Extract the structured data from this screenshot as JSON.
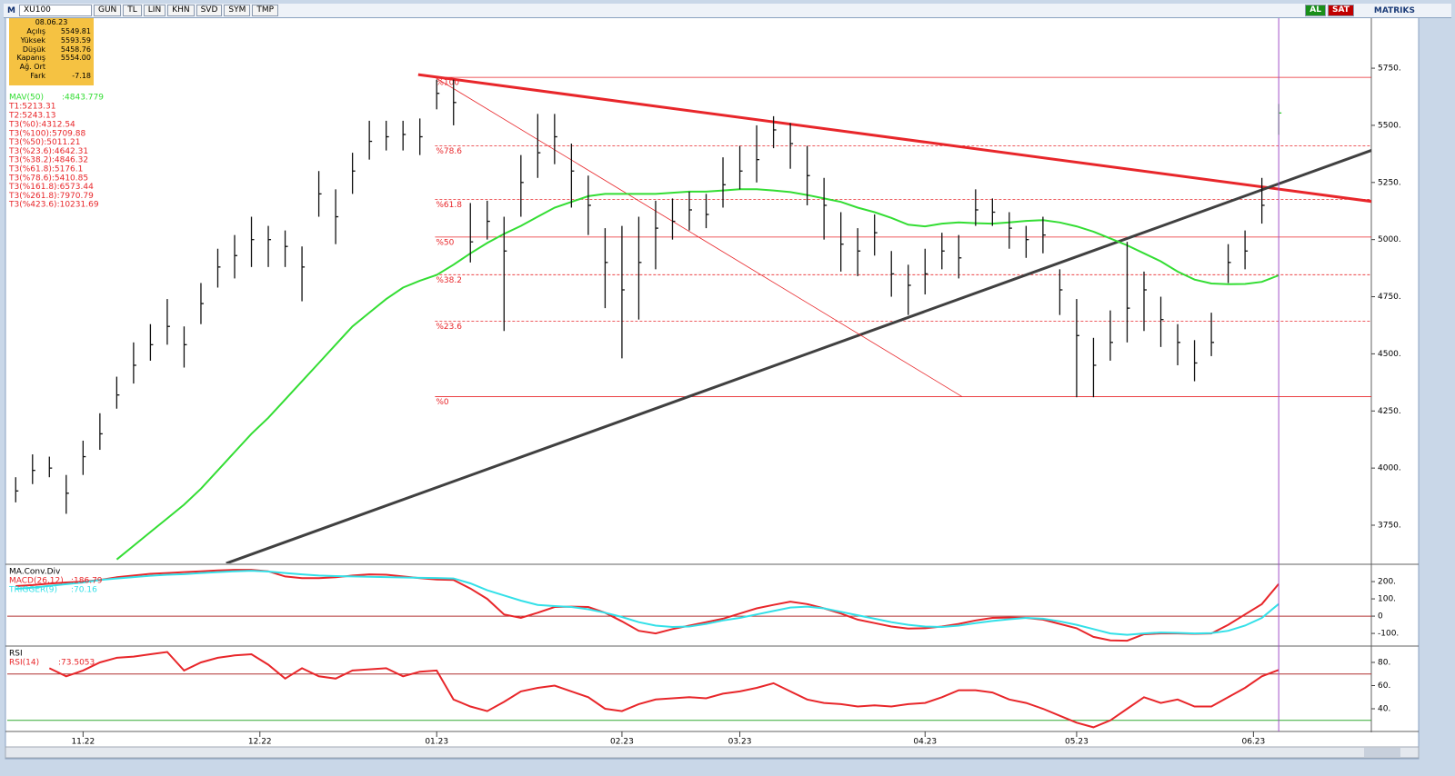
{
  "toolbar": {
    "logo": "M",
    "symbol": "XU100",
    "buttons": [
      "GUN",
      "TL",
      "LIN",
      "KHN",
      "SVD",
      "SYM",
      "TMP"
    ],
    "buy": "AL",
    "sell": "SAT",
    "brand": "MATRIKS"
  },
  "info_box": {
    "date": "08.06.23",
    "rows": [
      [
        "Açılış",
        "5549.81"
      ],
      [
        "Yüksek",
        "5593.59"
      ],
      [
        "Düşük",
        "5458.76"
      ],
      [
        "Kapanış",
        "5554.00"
      ],
      [
        "Ağ. Ort"
      ],
      [
        "Fark",
        "-7.18"
      ]
    ]
  },
  "chart_data": [
    {
      "type": "ohlc",
      "color": "#111111",
      "last_color": "#33cc33",
      "x": [
        0,
        2,
        4,
        6,
        8,
        10,
        12,
        14,
        16,
        18,
        20,
        22,
        24,
        26,
        28,
        30,
        32,
        34,
        36,
        38,
        40,
        42,
        44,
        46,
        48,
        50,
        52,
        54,
        56,
        58,
        60,
        62,
        64,
        66,
        68,
        70,
        72,
        74,
        76,
        78,
        80,
        82,
        84,
        86,
        88,
        90,
        92,
        94,
        96,
        98,
        100,
        102,
        104,
        106,
        108,
        110,
        112,
        114,
        116,
        118,
        120,
        122,
        124,
        126,
        128,
        130,
        132,
        134,
        136,
        138,
        140,
        142,
        144,
        146,
        148,
        150
      ],
      "close": [
        3900,
        3990,
        4000,
        3890,
        4050,
        4150,
        4320,
        4450,
        4540,
        4620,
        4540,
        4720,
        4880,
        4930,
        5000,
        5000,
        4970,
        4880,
        5200,
        5100,
        5300,
        5430,
        5450,
        5460,
        5450,
        5640,
        5600,
        4990,
        5080,
        4950,
        5250,
        5380,
        5450,
        5300,
        5150,
        4900,
        4780,
        4900,
        5050,
        5080,
        5130,
        5110,
        5240,
        5300,
        5350,
        5480,
        5420,
        5280,
        5150,
        4980,
        4950,
        5030,
        4850,
        4800,
        4850,
        4950,
        4920,
        5130,
        5120,
        5050,
        5000,
        5020,
        4780,
        4580,
        4450,
        4550,
        4700,
        4780,
        4650,
        4550,
        4460,
        4550,
        4900,
        4950,
        5150,
        5554
      ],
      "high": [
        3960,
        4060,
        4050,
        3970,
        4120,
        4240,
        4400,
        4550,
        4630,
        4740,
        4620,
        4810,
        4960,
        5020,
        5100,
        5060,
        5040,
        4970,
        5300,
        5220,
        5380,
        5520,
        5520,
        5520,
        5530,
        5700,
        5700,
        5160,
        5170,
        5100,
        5370,
        5550,
        5550,
        5420,
        5280,
        5050,
        5060,
        5100,
        5170,
        5180,
        5210,
        5200,
        5360,
        5410,
        5500,
        5540,
        5510,
        5410,
        5270,
        5120,
        5050,
        5110,
        4950,
        4890,
        4960,
        5030,
        5020,
        5220,
        5180,
        5120,
        5060,
        5100,
        4870,
        4740,
        4570,
        4690,
        4990,
        4860,
        4750,
        4630,
        4560,
        4680,
        4980,
        5040,
        5270,
        5593.59
      ],
      "low": [
        3850,
        3930,
        3960,
        3800,
        3970,
        4080,
        4260,
        4370,
        4470,
        4540,
        4440,
        4630,
        4790,
        4830,
        4880,
        4880,
        4880,
        4730,
        5100,
        4980,
        5200,
        5350,
        5390,
        5390,
        5370,
        5570,
        5500,
        4900,
        5000,
        4600,
        5100,
        5270,
        5330,
        5140,
        5020,
        4700,
        4480,
        4650,
        4870,
        5000,
        5040,
        5050,
        5140,
        5220,
        5250,
        5400,
        5310,
        5150,
        5000,
        4860,
        4840,
        4930,
        4750,
        4670,
        4760,
        4870,
        4830,
        5060,
        5060,
        4960,
        4920,
        4940,
        4670,
        4310,
        4310,
        4470,
        4550,
        4600,
        4530,
        4450,
        4380,
        4490,
        4810,
        4870,
        5070,
        5458.76
      ],
      "xlim": [
        -1,
        161
      ],
      "xticks": [
        {
          "value": 8,
          "label": "11.22"
        },
        {
          "value": 29,
          "label": "12.22"
        },
        {
          "value": 50,
          "label": "01.23"
        },
        {
          "value": 72,
          "label": "02.23"
        },
        {
          "value": 86,
          "label": "03.23"
        },
        {
          "value": 108,
          "label": "04.23"
        },
        {
          "value": 126,
          "label": "05.23"
        },
        {
          "value": 147,
          "label": "06.23"
        }
      ],
      "ylim": [
        3583,
        5969
      ],
      "yticks": [
        {
          "value": 3750,
          "label": "3750."
        },
        {
          "value": 4000,
          "label": "4000."
        },
        {
          "value": 4250,
          "label": "4250."
        },
        {
          "value": 4500,
          "label": "4500."
        },
        {
          "value": 4750,
          "label": "4750."
        },
        {
          "value": 5000,
          "label": "5000."
        },
        {
          "value": 5250,
          "label": "5250."
        },
        {
          "value": 5500,
          "label": "5500."
        },
        {
          "value": 5750,
          "label": "5750."
        }
      ],
      "overlays": [
        {
          "name": "MAV(50)",
          "value_label": ":4843.779",
          "color": "#33dd33",
          "values": [
            null,
            null,
            null,
            null,
            null,
            null,
            3600,
            3660,
            3720,
            3780,
            3840,
            3910,
            3990,
            4070,
            4150,
            4220,
            4300,
            4380,
            4460,
            4540,
            4620,
            4680,
            4740,
            4790,
            4820,
            4845,
            4890,
            4940,
            4985,
            5025,
            5060,
            5100,
            5140,
            5165,
            5190,
            5200,
            5200,
            5200,
            5200,
            5205,
            5210,
            5210,
            5215,
            5220,
            5220,
            5215,
            5208,
            5195,
            5180,
            5165,
            5140,
            5120,
            5095,
            5065,
            5058,
            5070,
            5075,
            5072,
            5070,
            5075,
            5082,
            5085,
            5075,
            5058,
            5035,
            5005,
            4975,
            4940,
            4905,
            4860,
            4825,
            4808,
            4805,
            4806,
            4815,
            4843.779
          ]
        }
      ],
      "legend_extra": [
        "T1:5213.31",
        "T2:5243.13"
      ],
      "levels_from": 49.8,
      "levels": [
        {
          "value": 4312.54,
          "label": "%0",
          "legend": "T3(%0):4312.54",
          "dashed": false
        },
        {
          "value": 5709.88,
          "label": "%100",
          "legend": "T3(%100):5709.88",
          "dashed": false
        },
        {
          "value": 5011.21,
          "label": "%50",
          "legend": "T3(%50):5011.21",
          "dashed": false
        },
        {
          "value": 4642.31,
          "label": "%23.6",
          "legend": "T3(%23.6):4642.31",
          "dashed": true
        },
        {
          "value": 4846.32,
          "label": "%38.2",
          "legend": "T3(%38.2):4846.32",
          "dashed": true
        },
        {
          "value": 5176.1,
          "label": "%61.8",
          "legend": "T3(%61.8):5176.1",
          "dashed": true
        },
        {
          "value": 5410.85,
          "label": "%78.6",
          "legend": "T3(%78.6):5410.85",
          "dashed": true
        },
        {
          "value": 6573.44,
          "legend": "T3(%161.8):6573.44",
          "dashed": true
        },
        {
          "value": 7970.79,
          "legend": "T3(%261.8):7970.79",
          "dashed": true
        },
        {
          "value": 10231.69,
          "legend": "T3(%423.6):10231.69",
          "dashed": true
        }
      ],
      "trendlines": [
        {
          "x": [
            47.8,
            161.2
          ],
          "y": [
            5722,
            5166
          ],
          "color": "#e8262a",
          "width": 3
        },
        {
          "x": [
            25,
            161.2
          ],
          "y": [
            3583,
            5393
          ],
          "color": "#404040",
          "width": 3
        },
        {
          "x": [
            49.8,
            112.4
          ],
          "y": [
            5709.88,
            4312.54
          ],
          "color": "#e8262a",
          "width": 0.8
        }
      ],
      "cursor_x": 150
    },
    {
      "type": "line",
      "title": "MA.Conv.Div",
      "series": [
        {
          "name": "MACD(26,12)",
          "value_label": ":186.79",
          "color": "#e8262a",
          "values": [
            174,
            180,
            188,
            195,
            200,
            210,
            225,
            235,
            245,
            250,
            255,
            260,
            265,
            268,
            268,
            260,
            230,
            220,
            220,
            225,
            235,
            242,
            240,
            230,
            220,
            212,
            210,
            160,
            100,
            10,
            -10,
            20,
            53,
            55,
            53,
            20,
            -30,
            -85,
            -100,
            -75,
            -55,
            -35,
            -15,
            15,
            45,
            65,
            84,
            70,
            45,
            15,
            -20,
            -40,
            -60,
            -72,
            -70,
            -60,
            -45,
            -25,
            -10,
            -8,
            -10,
            -20,
            -45,
            -70,
            -120,
            -140,
            -142,
            -105,
            -100,
            -100,
            -102,
            -100,
            -50,
            10,
            70,
            186.79
          ]
        },
        {
          "name": "TRIGGER(9)",
          "value_label": ":70.16",
          "color": "#33e0e8",
          "values": [
            158,
            165,
            175,
            185,
            195,
            210,
            218,
            226,
            234,
            240,
            243,
            250,
            255,
            260,
            263,
            258,
            250,
            242,
            235,
            232,
            230,
            228,
            226,
            224,
            222,
            221,
            218,
            190,
            150,
            120,
            90,
            65,
            58,
            53,
            40,
            20,
            -5,
            -35,
            -55,
            -63,
            -60,
            -45,
            -25,
            -10,
            10,
            30,
            50,
            55,
            45,
            25,
            5,
            -15,
            -35,
            -50,
            -60,
            -63,
            -55,
            -40,
            -28,
            -18,
            -10,
            -15,
            -30,
            -50,
            -75,
            -100,
            -108,
            -100,
            -95,
            -97,
            -100,
            -98,
            -85,
            -55,
            -10,
            70.16
          ]
        }
      ],
      "ylim": [
        -168,
        295
      ],
      "yticks": [
        {
          "value": -100,
          "label": "-100."
        },
        0,
        {
          "value": 100,
          "label": "100."
        },
        {
          "value": 200,
          "label": "200."
        }
      ],
      "reference_lines": [
        {
          "value": 0,
          "color": "#b03030"
        }
      ]
    },
    {
      "type": "line",
      "title": "RSI",
      "series": [
        {
          "name": "RSI(14)",
          "value_label": ":73.5053",
          "color": "#e8262a",
          "values": [
            null,
            null,
            75,
            68,
            73,
            80,
            84,
            85,
            87,
            89,
            73,
            80,
            84,
            86,
            87,
            78,
            66,
            75,
            68,
            66,
            73,
            74,
            75,
            68,
            72,
            73,
            48,
            42,
            38,
            46,
            55,
            58,
            60,
            55,
            50,
            40,
            38,
            44,
            48,
            49,
            50,
            49,
            53,
            55,
            58,
            62,
            55,
            48,
            45,
            44,
            42,
            43,
            42,
            44,
            45,
            50,
            56,
            56,
            54,
            48,
            45,
            40,
            34,
            28,
            24,
            30,
            40,
            50,
            45,
            48,
            42,
            42,
            50,
            58,
            68,
            73.5053
          ]
        }
      ],
      "ylim": [
        21.2,
        93.3
      ],
      "yticks": [
        {
          "value": 40,
          "label": "40."
        },
        {
          "value": 60,
          "label": "60."
        },
        {
          "value": 80,
          "label": "80."
        }
      ],
      "reference_lines": [
        {
          "value": 70,
          "color": "#b03030"
        },
        {
          "value": 30,
          "color": "#33aa33"
        }
      ]
    }
  ]
}
